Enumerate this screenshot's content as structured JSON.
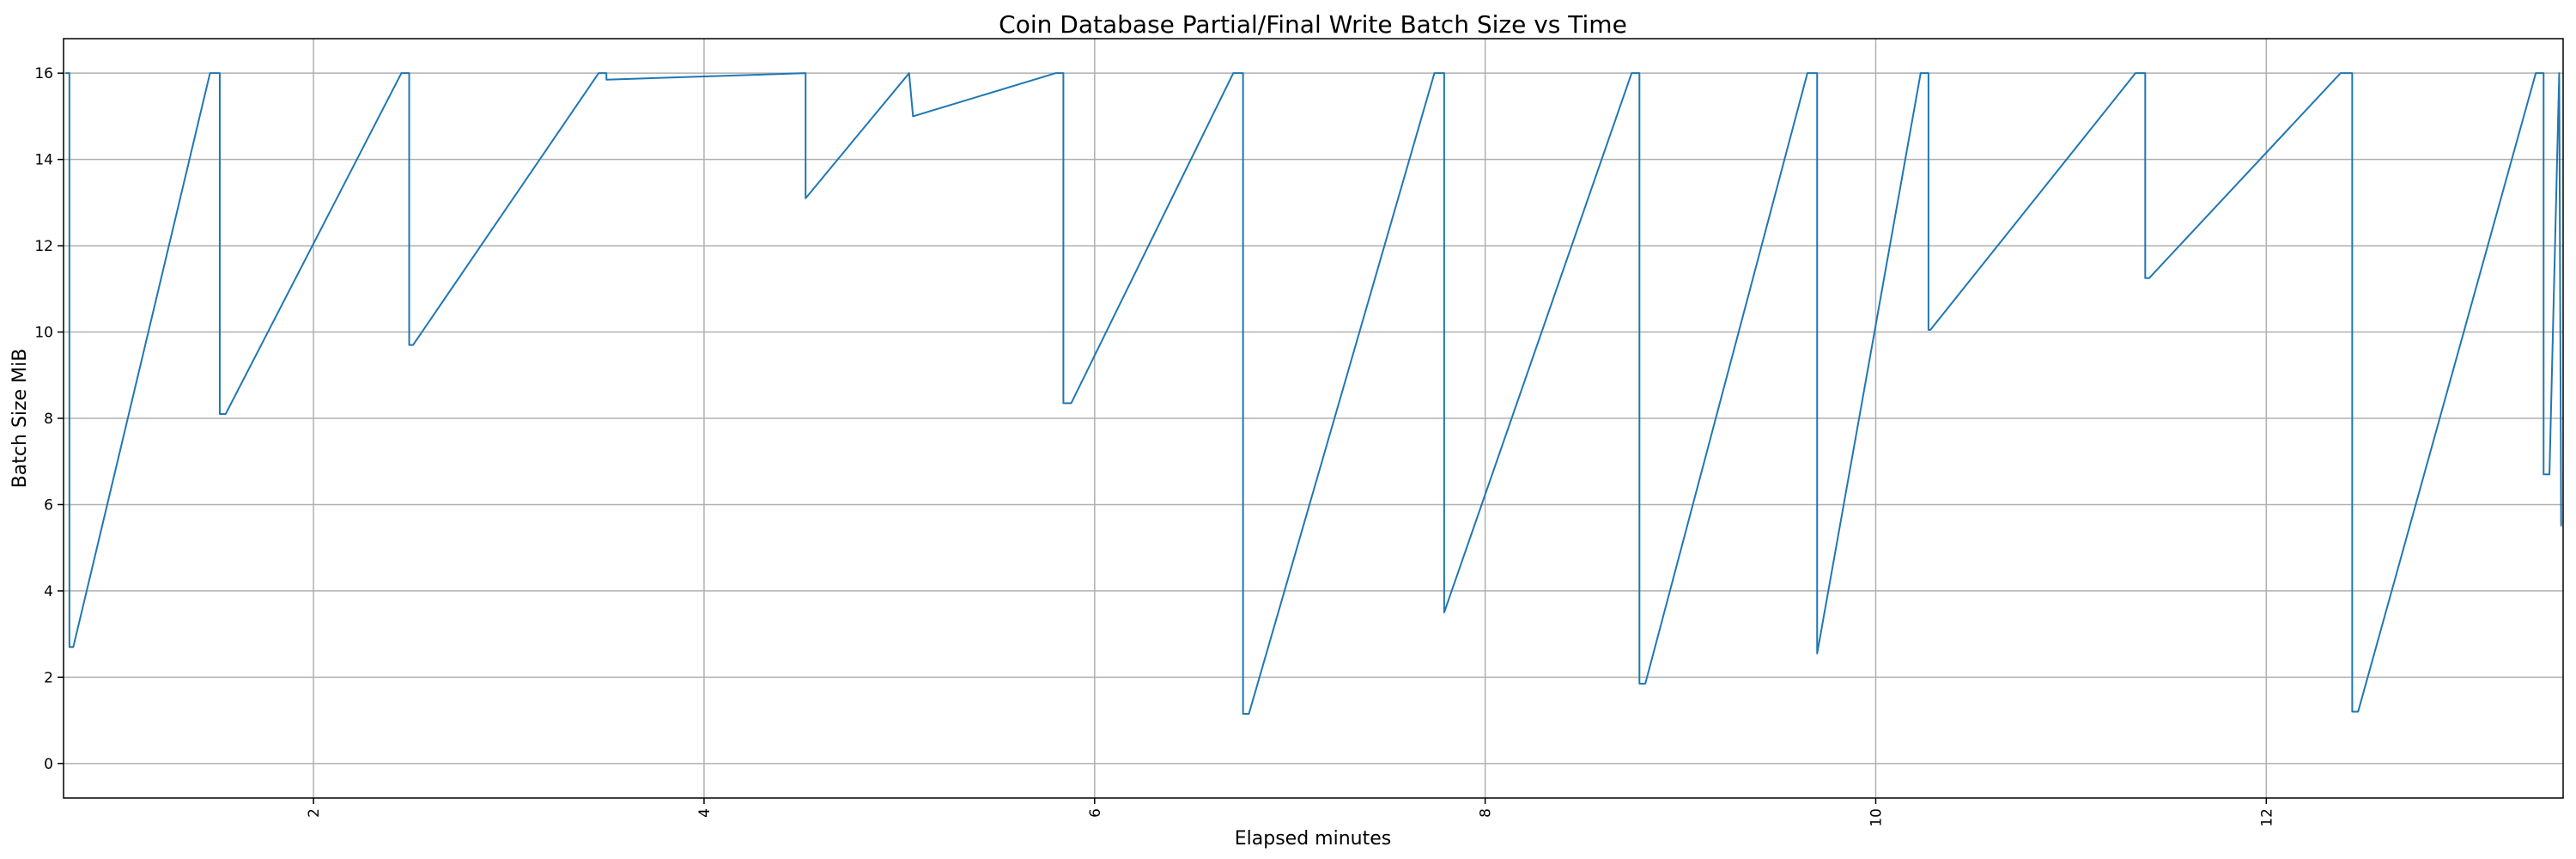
{
  "chart_data": {
    "type": "line",
    "title": "Coin Database Partial/Final Write Batch Size vs Time",
    "xlabel": "Elapsed minutes",
    "ylabel": "Batch Size MiB",
    "xlim": [
      0.72,
      13.52
    ],
    "ylim": [
      -0.8,
      16.8
    ],
    "xticks": [
      2,
      4,
      6,
      8,
      10,
      12
    ],
    "xtick_labels": [
      "2",
      "4",
      "6",
      "8",
      "10",
      "12"
    ],
    "yticks": [
      0,
      2,
      4,
      6,
      8,
      10,
      12,
      14,
      16
    ],
    "ytick_labels": [
      "0",
      "2",
      "4",
      "6",
      "8",
      "10",
      "12",
      "14",
      "16"
    ],
    "grid": true,
    "series": [
      {
        "color": "#1f77b4",
        "x": [
          0.73,
          0.75,
          0.75,
          0.77,
          1.47,
          1.52,
          1.52,
          1.55,
          2.45,
          2.49,
          2.49,
          2.51,
          3.46,
          3.5,
          3.5,
          4.52,
          4.52,
          5.05,
          5.07,
          5.8,
          5.84,
          5.84,
          5.88,
          6.71,
          6.76,
          6.76,
          6.79,
          7.74,
          7.79,
          7.79,
          8.75,
          8.79,
          8.79,
          8.82,
          9.65,
          9.7,
          9.7,
          10.23,
          10.27,
          10.27,
          10.28,
          11.33,
          11.38,
          11.38,
          11.4,
          12.38,
          12.44,
          12.44,
          12.47,
          13.38,
          13.42,
          13.42,
          13.45,
          13.5,
          13.51
        ],
        "y": [
          16,
          16,
          2.7,
          2.7,
          16,
          16,
          8.1,
          8.1,
          16,
          16,
          9.7,
          9.7,
          16,
          16,
          15.85,
          16,
          13.1,
          16,
          15,
          16,
          16,
          8.35,
          8.35,
          16,
          16,
          1.15,
          1.15,
          16,
          16,
          3.5,
          16,
          16,
          1.85,
          1.85,
          16,
          16,
          2.55,
          16,
          16,
          10.05,
          10.05,
          16,
          16,
          11.25,
          11.25,
          16,
          16,
          1.2,
          1.2,
          16,
          16,
          6.7,
          6.7,
          16,
          5.5
        ]
      }
    ]
  }
}
